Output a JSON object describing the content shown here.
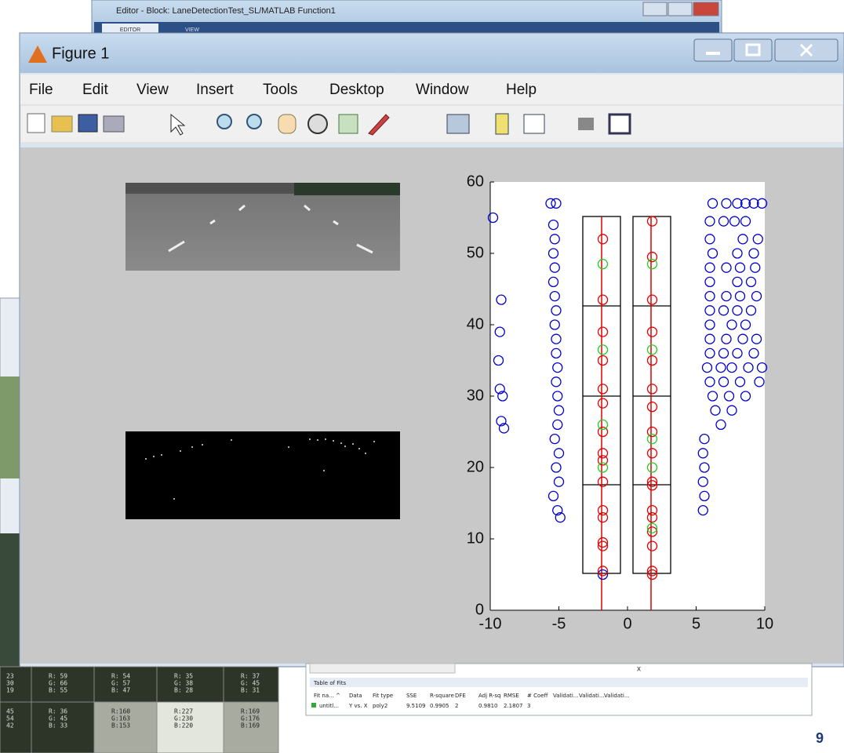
{
  "editor": {
    "title": "Editor - Block: LaneDetectionTest_SL/MATLAB Function1",
    "tabs": [
      "EDITOR",
      "VIEW"
    ]
  },
  "figure": {
    "title": "Figure 1",
    "menu": [
      "File",
      "Edit",
      "View",
      "Insert",
      "Tools",
      "Desktop",
      "Window",
      "Help"
    ],
    "plot": {
      "type": "scatter",
      "xlim": [
        -10,
        10
      ],
      "ylim": [
        0,
        60
      ],
      "xticks": [
        -10,
        -5,
        0,
        5,
        10
      ],
      "yticks": [
        0,
        10,
        20,
        30,
        40,
        50,
        60
      ],
      "series": [
        {
          "color": "#0000cc",
          "x": [
            -9.8,
            -9.2,
            -9.3,
            -9.4,
            -9.3,
            -9.1,
            -9.2,
            -9.0,
            -5.6,
            -5.2,
            -5.4,
            -5.3,
            -5.4,
            -5.3,
            -5.4,
            -5.3,
            -5.2,
            -5.3,
            -5.2,
            -5.2,
            -5.1,
            -5.2,
            -5.1,
            -5.0,
            -5.1,
            -5.3,
            -5.0,
            -5.2,
            -5.0,
            -5.4,
            -5.1,
            -4.9,
            -1.8,
            6.2,
            7.2,
            8.0,
            8.6,
            9.2,
            9.8,
            6.0,
            7.0,
            7.8,
            8.6,
            6.0,
            8.4,
            9.5,
            6.2,
            8.0,
            9.2,
            6.0,
            7.2,
            8.2,
            9.3,
            6.0,
            8.0,
            9.0,
            6.0,
            7.2,
            8.2,
            9.4,
            6.0,
            7.0,
            8.0,
            9.0,
            6.0,
            7.6,
            8.6,
            6.0,
            7.2,
            8.4,
            9.4,
            6.0,
            7.0,
            8.0,
            9.2,
            5.8,
            6.8,
            7.6,
            8.8,
            9.8,
            6.0,
            7.0,
            8.2,
            9.6,
            6.2,
            7.4,
            8.6,
            6.4,
            7.6,
            6.8,
            5.6,
            5.5,
            5.6,
            5.5,
            5.6,
            5.5
          ],
          "y": [
            55,
            43.5,
            39,
            35,
            31,
            30,
            26.5,
            25.5,
            57,
            57,
            54,
            52,
            50,
            48,
            46,
            44,
            42,
            40,
            38,
            36,
            34,
            32,
            30,
            28,
            26,
            24,
            22,
            20,
            18,
            16,
            14,
            13,
            5,
            57,
            57,
            57,
            57,
            57,
            57,
            54.5,
            54.5,
            54.5,
            54.5,
            52,
            52,
            52,
            50,
            50,
            50,
            48,
            48,
            48,
            48,
            46,
            46,
            46,
            44,
            44,
            44,
            44,
            42,
            42,
            42,
            42,
            40,
            40,
            40,
            38,
            38,
            38,
            38,
            36,
            36,
            36,
            36,
            34,
            34,
            34,
            34,
            34,
            32,
            32,
            32,
            32,
            30,
            30,
            30,
            28,
            28,
            26,
            24,
            22,
            20,
            18,
            16,
            14
          ]
        },
        {
          "color": "#e00000",
          "x": [
            -1.8,
            -1.8,
            -1.8,
            -1.8,
            -1.8,
            -1.8,
            -1.8,
            -1.8,
            -1.8,
            -1.8,
            -1.8,
            -1.8,
            -1.8,
            -1.8,
            -1.8,
            1.8,
            1.8,
            1.8,
            1.8,
            1.8,
            1.8,
            1.8,
            1.8,
            1.8,
            1.8,
            1.8,
            1.8,
            1.8,
            1.8,
            1.8,
            1.8,
            1.8
          ],
          "y": [
            52,
            43.5,
            39,
            35,
            31,
            29,
            25,
            22,
            21,
            18,
            14,
            13,
            9.5,
            9,
            5.5,
            54.5,
            49.5,
            43.5,
            39,
            35,
            31,
            28.5,
            25,
            22,
            18,
            17.5,
            14,
            13,
            11,
            9,
            5.5,
            5
          ]
        },
        {
          "color": "#22cc22",
          "x": [
            -1.8,
            -1.8,
            -1.8,
            -1.8,
            1.8,
            1.8,
            1.8,
            1.8,
            1.8
          ],
          "y": [
            48.5,
            36.5,
            26,
            20,
            48.5,
            36.5,
            24,
            20,
            11.5
          ]
        }
      ]
    }
  },
  "fits": {
    "title": "Table of Fits",
    "close": "x",
    "headers": [
      "Fit na... ^",
      "Data",
      "Fit type",
      "SSE",
      "R-square",
      "DFE",
      "Adj R-sq",
      "RMSE",
      "# Coeff",
      "Validati...",
      "Validati...",
      "Validati..."
    ],
    "row": [
      "untitl...",
      "Y vs. X",
      "poly2",
      "9.5109",
      "0.9905",
      "2",
      "0.9810",
      "2.1807",
      "3"
    ]
  },
  "pixels": [
    [
      [
        "23",
        "30",
        "19"
      ],
      [
        "R: 59",
        "G: 66",
        "B: 55"
      ],
      [
        "R: 54",
        "G: 57",
        "B: 47"
      ],
      [
        "R: 35",
        "G: 38",
        "B: 28"
      ],
      [
        "R: 37",
        "G: 45",
        "B: 31"
      ]
    ],
    [
      [
        "45",
        "54",
        "42"
      ],
      [
        "R: 36",
        "G: 45",
        "B: 33"
      ],
      [
        "R:160",
        "G:163",
        "B:153"
      ],
      [
        "R:227",
        "G:230",
        "B:220"
      ],
      [
        "R:169",
        "G:176",
        "B:169"
      ]
    ]
  ],
  "page_number": "9"
}
